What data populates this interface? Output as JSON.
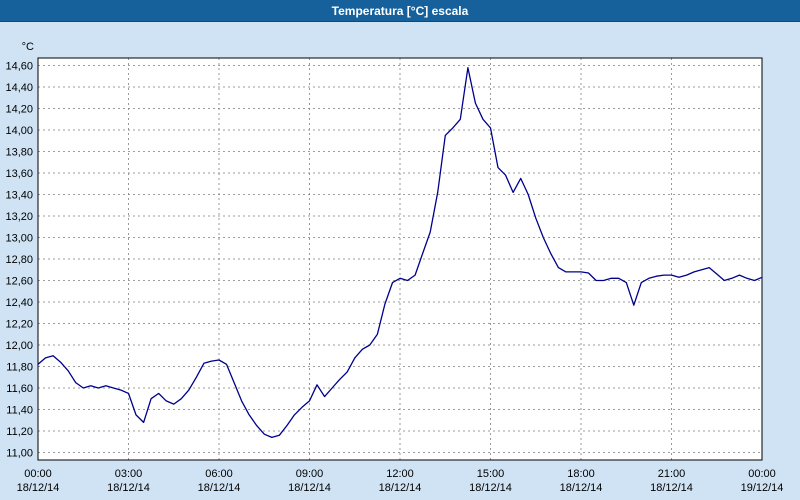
{
  "header": {
    "title": "Temperatura [°C] escala"
  },
  "colors": {
    "titlebar_bg": "#16619c",
    "titlebar_text": "#ffffff",
    "page_bg": "#cfe3f4",
    "plot_bg": "#ffffff",
    "grid": "#7f7f7f",
    "line": "#00008b",
    "axis_text": "#000000",
    "border": "#000000"
  },
  "chart_data": {
    "type": "line",
    "title": "Temperatura [°C] escala",
    "unit_label": "°C",
    "xlabel": "",
    "ylabel": "°C",
    "xlim": [
      0,
      24
    ],
    "ylim": [
      11.0,
      14.6
    ],
    "y_step": 0.2,
    "grid": "dashed",
    "legend_position": "none",
    "y_tick_labels": [
      "14,60",
      "14,40",
      "14,20",
      "14,00",
      "13,80",
      "13,60",
      "13,40",
      "13,20",
      "13,00",
      "12,80",
      "12,60",
      "12,40",
      "12,20",
      "12,00",
      "11,80",
      "11,60",
      "11,40",
      "11,20",
      "11,00"
    ],
    "x_tick_hours": [
      0,
      3,
      6,
      9,
      12,
      15,
      18,
      21,
      24
    ],
    "x_ticks": [
      {
        "time": "00:00",
        "date": "18/12/14"
      },
      {
        "time": "03:00",
        "date": "18/12/14"
      },
      {
        "time": "06:00",
        "date": "18/12/14"
      },
      {
        "time": "09:00",
        "date": "18/12/14"
      },
      {
        "time": "12:00",
        "date": "18/12/14"
      },
      {
        "time": "15:00",
        "date": "18/12/14"
      },
      {
        "time": "18:00",
        "date": "18/12/14"
      },
      {
        "time": "21:00",
        "date": "18/12/14"
      },
      {
        "time": "00:00",
        "date": "19/12/14"
      }
    ],
    "series": [
      {
        "name": "Temperatura",
        "x_start": 0,
        "x_step": 0.25,
        "values": [
          11.82,
          11.88,
          11.9,
          11.84,
          11.76,
          11.65,
          11.6,
          11.62,
          11.6,
          11.62,
          11.6,
          11.58,
          11.55,
          11.35,
          11.28,
          11.5,
          11.55,
          11.48,
          11.45,
          11.5,
          11.58,
          11.7,
          11.83,
          11.85,
          11.86,
          11.82,
          11.65,
          11.48,
          11.35,
          11.25,
          11.17,
          11.14,
          11.16,
          11.25,
          11.35,
          11.42,
          11.48,
          11.63,
          11.52,
          11.6,
          11.68,
          11.75,
          11.88,
          11.96,
          12.0,
          12.1,
          12.38,
          12.58,
          12.62,
          12.6,
          12.65,
          12.85,
          13.05,
          13.42,
          13.95,
          14.02,
          14.1,
          14.58,
          14.25,
          14.1,
          14.02,
          13.65,
          13.58,
          13.42,
          13.55,
          13.4,
          13.18,
          13.0,
          12.85,
          12.72,
          12.68,
          12.68,
          12.68,
          12.67,
          12.6,
          12.6,
          12.62,
          12.62,
          12.58,
          12.37,
          12.58,
          12.62,
          12.64,
          12.65,
          12.65,
          12.63,
          12.65,
          12.68,
          12.7,
          12.72,
          12.66,
          12.6,
          12.62,
          12.65,
          12.62,
          12.6,
          12.63
        ]
      }
    ]
  }
}
